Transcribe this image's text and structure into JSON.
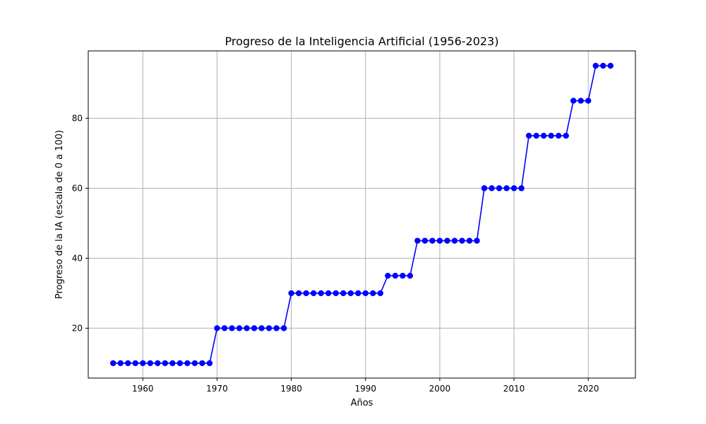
{
  "chart_data": {
    "type": "line",
    "title": "Progreso de la Inteligencia Artificial (1956-2023)",
    "xlabel": "Años",
    "ylabel": "Progreso de la IA (escala de 0 a 100)",
    "xlim": [
      1952.65,
      2026.35
    ],
    "ylim": [
      5.75,
      99.25
    ],
    "xticks": [
      1960,
      1970,
      1980,
      1990,
      2000,
      2010,
      2020
    ],
    "yticks": [
      20,
      40,
      60,
      80
    ],
    "grid": true,
    "line_color": "#0000ff",
    "marker": "circle",
    "series": [
      {
        "x": [
          1956,
          1957,
          1958,
          1959,
          1960,
          1961,
          1962,
          1963,
          1964,
          1965,
          1966,
          1967,
          1968,
          1969,
          1970,
          1971,
          1972,
          1973,
          1974,
          1975,
          1976,
          1977,
          1978,
          1979,
          1980,
          1981,
          1982,
          1983,
          1984,
          1985,
          1986,
          1987,
          1988,
          1989,
          1990,
          1991,
          1992,
          1993,
          1994,
          1995,
          1996,
          1997,
          1998,
          1999,
          2000,
          2001,
          2002,
          2003,
          2004,
          2005,
          2006,
          2007,
          2008,
          2009,
          2010,
          2011,
          2012,
          2013,
          2014,
          2015,
          2016,
          2017,
          2018,
          2019,
          2020,
          2021,
          2022,
          2023
        ],
        "values": [
          10,
          10,
          10,
          10,
          10,
          10,
          10,
          10,
          10,
          10,
          10,
          10,
          10,
          10,
          20,
          20,
          20,
          20,
          20,
          20,
          20,
          20,
          20,
          20,
          30,
          30,
          30,
          30,
          30,
          30,
          30,
          30,
          30,
          30,
          30,
          30,
          30,
          35,
          35,
          35,
          35,
          45,
          45,
          45,
          45,
          45,
          45,
          45,
          45,
          45,
          60,
          60,
          60,
          60,
          60,
          60,
          75,
          75,
          75,
          75,
          75,
          75,
          85,
          85,
          85,
          95,
          95,
          95
        ]
      }
    ]
  }
}
